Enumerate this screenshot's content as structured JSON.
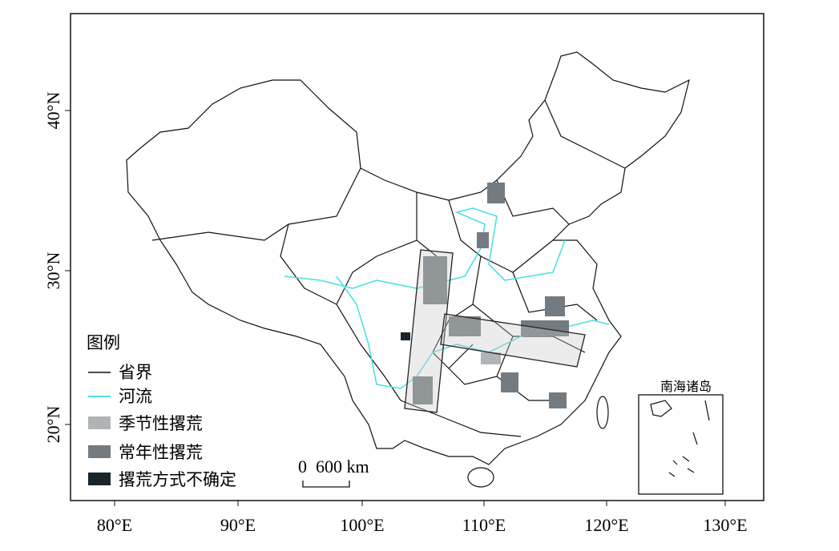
{
  "axes": {
    "x_ticks": [
      "80°E",
      "90°E",
      "100°E",
      "110°E",
      "120°E",
      "130°E"
    ],
    "y_ticks": [
      "40°N",
      "30°N",
      "20°N"
    ]
  },
  "legend": {
    "title": "图例",
    "items": [
      "省界",
      "河流",
      "季节性撂荒",
      "常年性撂荒",
      "撂荒方式不确定"
    ]
  },
  "scale_bar": {
    "label": "0  600 km"
  },
  "inset": {
    "title": "南海诸岛"
  }
}
